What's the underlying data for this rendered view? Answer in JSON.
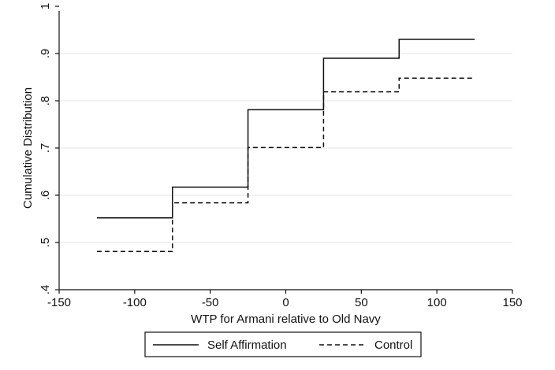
{
  "chart_data": {
    "type": "line",
    "step": true,
    "title": "",
    "xlabel": "WTP for Armani relative to Old Navy",
    "ylabel": "Cumulative Distribution",
    "xlim": [
      -150,
      150
    ],
    "ylim": [
      0.4,
      1.0
    ],
    "xticks": [
      -150,
      -100,
      -50,
      0,
      50,
      100,
      150
    ],
    "xtick_labels": [
      "-150",
      "-100",
      "-50",
      "0",
      "50",
      "100",
      "150"
    ],
    "yticks": [
      0.4,
      0.5,
      0.6,
      0.7,
      0.8,
      0.9,
      1.0
    ],
    "ytick_labels": [
      ".4",
      ".5",
      ".6",
      ".7",
      ".8",
      ".9",
      "1"
    ],
    "grid": "horizontal",
    "legend_position": "bottom",
    "series": [
      {
        "name": "Self Affirmation",
        "style": "solid",
        "color": "#111111",
        "x": [
          -125,
          -75,
          -25,
          25,
          75,
          125
        ],
        "y": [
          0.552,
          0.617,
          0.781,
          0.89,
          0.93,
          0.93
        ]
      },
      {
        "name": "Control",
        "style": "dashed",
        "color": "#111111",
        "x": [
          -125,
          -75,
          -25,
          25,
          75,
          125
        ],
        "y": [
          0.481,
          0.584,
          0.701,
          0.819,
          0.848,
          0.848
        ]
      }
    ]
  }
}
